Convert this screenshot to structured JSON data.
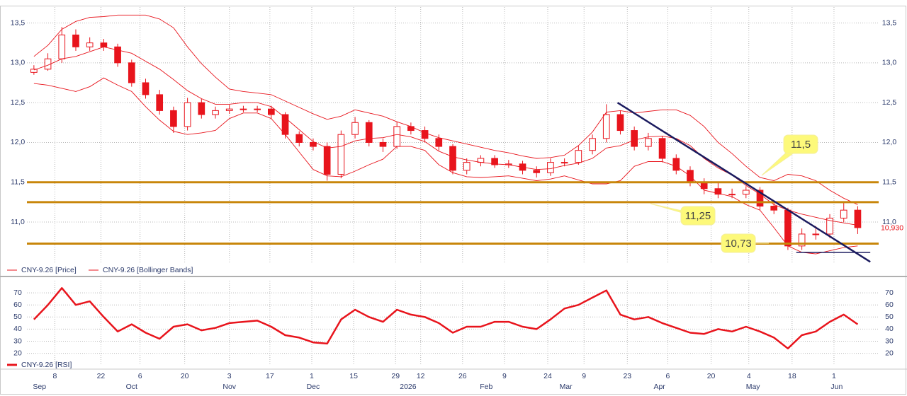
{
  "chart_data": [
    {
      "type": "candlestick",
      "name": "CNY-9.26 [Price]",
      "color": "#e8141c",
      "grid": true,
      "xlim": [
        -0.5,
        60.5
      ],
      "ylim": [
        10.37,
        13.7
      ],
      "yticks": [
        {
          "value": 11.0,
          "label": "11,0"
        },
        {
          "value": 11.5,
          "label": "11,5"
        },
        {
          "value": 12.0,
          "label": "12,0"
        },
        {
          "value": 12.5,
          "label": "12,5"
        },
        {
          "value": 13.0,
          "label": "13,0"
        },
        {
          "value": 13.5,
          "label": "13,5"
        }
      ],
      "open": [
        12.88,
        12.92,
        13.05,
        13.35,
        13.2,
        13.25,
        13.2,
        13.0,
        12.75,
        12.6,
        12.4,
        12.2,
        12.5,
        12.35,
        12.4,
        12.42,
        12.42,
        12.42,
        12.35,
        12.1,
        12.0,
        11.95,
        11.6,
        12.1,
        12.25,
        12.0,
        11.95,
        12.2,
        12.15,
        12.05,
        11.95,
        11.65,
        11.75,
        11.8,
        11.72,
        11.73,
        11.65,
        11.62,
        11.75,
        11.75,
        11.9,
        12.05,
        12.35,
        12.15,
        11.95,
        12.05,
        11.8,
        11.65,
        11.5,
        11.42,
        11.35,
        11.35,
        11.4,
        11.2,
        11.15,
        10.7,
        10.85,
        10.85,
        11.05,
        11.15
      ],
      "high": [
        12.97,
        13.12,
        13.45,
        13.42,
        13.32,
        13.3,
        13.24,
        13.04,
        12.8,
        12.66,
        12.45,
        12.56,
        12.55,
        12.45,
        12.47,
        12.46,
        12.46,
        12.46,
        12.38,
        12.14,
        12.05,
        12.0,
        12.15,
        12.32,
        12.28,
        12.05,
        12.26,
        12.25,
        12.2,
        12.1,
        11.98,
        11.8,
        11.84,
        11.84,
        11.78,
        11.77,
        11.7,
        11.8,
        11.8,
        11.96,
        12.1,
        12.48,
        12.4,
        12.2,
        12.12,
        12.08,
        11.85,
        11.7,
        11.55,
        11.5,
        11.42,
        11.45,
        11.44,
        11.25,
        11.18,
        10.92,
        10.95,
        11.1,
        11.25,
        11.2
      ],
      "low": [
        12.85,
        12.9,
        13.0,
        13.15,
        13.15,
        13.15,
        12.95,
        12.7,
        12.55,
        12.35,
        12.12,
        12.15,
        12.3,
        12.3,
        12.36,
        12.38,
        12.38,
        12.3,
        12.05,
        11.95,
        11.9,
        11.52,
        11.55,
        12.05,
        11.95,
        11.88,
        11.92,
        12.1,
        12.0,
        11.9,
        11.6,
        11.6,
        11.7,
        11.68,
        11.68,
        11.6,
        11.56,
        11.58,
        11.7,
        11.72,
        11.85,
        12.0,
        12.1,
        11.9,
        11.9,
        11.75,
        11.6,
        11.45,
        11.35,
        11.3,
        11.3,
        11.3,
        11.15,
        11.1,
        10.65,
        10.65,
        10.78,
        10.8,
        11.0,
        10.85
      ],
      "close": [
        12.92,
        13.05,
        13.35,
        13.2,
        13.25,
        13.2,
        13.0,
        12.75,
        12.6,
        12.4,
        12.2,
        12.5,
        12.35,
        12.4,
        12.42,
        12.42,
        12.42,
        12.35,
        12.1,
        12.0,
        11.95,
        11.6,
        12.1,
        12.25,
        12.0,
        11.95,
        12.2,
        12.15,
        12.05,
        11.95,
        11.65,
        11.75,
        11.8,
        11.72,
        11.73,
        11.65,
        11.62,
        11.75,
        11.75,
        11.9,
        12.05,
        12.35,
        12.15,
        11.95,
        12.05,
        11.8,
        11.65,
        11.5,
        11.42,
        11.35,
        11.35,
        11.4,
        11.2,
        11.15,
        10.7,
        10.85,
        10.85,
        11.05,
        11.15,
        10.93
      ],
      "bands": {
        "name": "CNY-9.26 [Bollinger Bands]",
        "color": "#e8141c",
        "upper": [
          13.08,
          13.22,
          13.42,
          13.52,
          13.57,
          13.58,
          13.6,
          13.6,
          13.6,
          13.55,
          13.44,
          13.2,
          12.99,
          12.82,
          12.67,
          12.64,
          12.62,
          12.6,
          12.52,
          12.44,
          12.36,
          12.29,
          12.33,
          12.41,
          12.37,
          12.33,
          12.26,
          12.2,
          12.12,
          12.06,
          12.02,
          11.98,
          11.94,
          11.9,
          11.87,
          11.83,
          11.8,
          11.81,
          11.84,
          11.96,
          12.13,
          12.38,
          12.4,
          12.37,
          12.39,
          12.41,
          12.41,
          12.34,
          12.2,
          12.0,
          11.86,
          11.7,
          11.56,
          11.52,
          11.6,
          11.58,
          11.52,
          11.4,
          11.3,
          11.22
        ],
        "middle": [
          12.91,
          12.97,
          13.05,
          13.08,
          13.14,
          13.2,
          13.16,
          13.12,
          13.02,
          12.92,
          12.79,
          12.65,
          12.55,
          12.48,
          12.48,
          12.5,
          12.5,
          12.45,
          12.31,
          12.16,
          12.01,
          11.93,
          11.95,
          12.02,
          12.05,
          12.06,
          12.1,
          12.07,
          12.01,
          11.89,
          11.82,
          11.78,
          11.75,
          11.73,
          11.72,
          11.69,
          11.66,
          11.67,
          11.71,
          11.74,
          11.8,
          11.93,
          11.96,
          12.03,
          12.07,
          12.08,
          12.05,
          11.96,
          11.8,
          11.68,
          11.59,
          11.46,
          11.35,
          11.22,
          11.15,
          11.1,
          11.06,
          11.02,
          10.99,
          10.96
        ],
        "lower": [
          12.74,
          12.72,
          12.68,
          12.64,
          12.7,
          12.81,
          12.72,
          12.64,
          12.45,
          12.28,
          12.14,
          12.1,
          12.12,
          12.15,
          12.3,
          12.37,
          12.37,
          12.3,
          12.1,
          11.88,
          11.66,
          11.58,
          11.57,
          11.64,
          11.72,
          11.79,
          11.95,
          11.95,
          11.9,
          11.72,
          11.62,
          11.57,
          11.56,
          11.57,
          11.58,
          11.55,
          11.52,
          11.54,
          11.58,
          11.53,
          11.48,
          11.48,
          11.52,
          11.7,
          11.76,
          11.76,
          11.7,
          11.58,
          11.4,
          11.36,
          11.32,
          11.22,
          11.15,
          10.93,
          10.7,
          10.62,
          10.6,
          10.64,
          10.68,
          10.7
        ]
      },
      "levels": [
        {
          "value": 11.5,
          "label": "11,5"
        },
        {
          "value": 11.25,
          "label": "11,25"
        },
        {
          "value": 10.73,
          "label": "10,73"
        }
      ],
      "level_color": "#c8860a",
      "lines": [
        {
          "x": [
            41.8,
            59.9
          ],
          "y": [
            12.5,
            10.5
          ]
        },
        {
          "x": [
            54.6,
            59.9
          ],
          "y": [
            10.62,
            10.62
          ]
        }
      ],
      "line_color": "#1a1a5e",
      "last": {
        "value": 10.93,
        "label": "10,930"
      }
    },
    {
      "type": "line",
      "grid": true,
      "xlim": [
        -0.5,
        60.5
      ],
      "ylim": [
        11,
        80
      ],
      "yticks": [
        20,
        30,
        40,
        50,
        60,
        70
      ],
      "series": [
        {
          "name": "CNY-9.26 [RSI]",
          "color": "#e8141c",
          "values": [
            48,
            60,
            74,
            60,
            63,
            50,
            38,
            44,
            37,
            32,
            42,
            44,
            39,
            41,
            45,
            46,
            47,
            42,
            35,
            33,
            29,
            28,
            48,
            56,
            50,
            46,
            56,
            52,
            50,
            45,
            37,
            42,
            42,
            46,
            46,
            42,
            40,
            48,
            57,
            60,
            66,
            72,
            52,
            48,
            50,
            45,
            41,
            37,
            36,
            40,
            38,
            42,
            38,
            33,
            24,
            35,
            38,
            46,
            52,
            44
          ]
        }
      ],
      "xticks": [
        {
          "value": 1.5,
          "label": "8"
        },
        {
          "value": 4.8,
          "label": "22"
        },
        {
          "value": 7.6,
          "label": "6"
        },
        {
          "value": 10.8,
          "label": "20"
        },
        {
          "value": 14.0,
          "label": "3"
        },
        {
          "value": 16.9,
          "label": "17"
        },
        {
          "value": 19.9,
          "label": "1"
        },
        {
          "value": 22.9,
          "label": "15"
        },
        {
          "value": 25.9,
          "label": "29"
        },
        {
          "value": 27.7,
          "label": "12"
        },
        {
          "value": 30.7,
          "label": "26"
        },
        {
          "value": 33.7,
          "label": "9"
        },
        {
          "value": 36.8,
          "label": "24"
        },
        {
          "value": 39.4,
          "label": "9"
        },
        {
          "value": 42.5,
          "label": "23"
        },
        {
          "value": 45.4,
          "label": "6"
        },
        {
          "value": 48.5,
          "label": "20"
        },
        {
          "value": 51.2,
          "label": "4"
        },
        {
          "value": 54.3,
          "label": "18"
        },
        {
          "value": 57.3,
          "label": "1"
        }
      ],
      "month_ticks": [
        {
          "value": 0.4,
          "label": "Sep"
        },
        {
          "value": 7.0,
          "label": "Oct"
        },
        {
          "value": 14.0,
          "label": "Nov"
        },
        {
          "value": 20.0,
          "label": "Dec"
        },
        {
          "value": 26.8,
          "label": "2026"
        },
        {
          "value": 32.4,
          "label": "Feb"
        },
        {
          "value": 38.1,
          "label": "Mar"
        },
        {
          "value": 44.8,
          "label": "Apr"
        },
        {
          "value": 51.5,
          "label": "May"
        },
        {
          "value": 57.5,
          "label": "Jun"
        }
      ]
    }
  ]
}
